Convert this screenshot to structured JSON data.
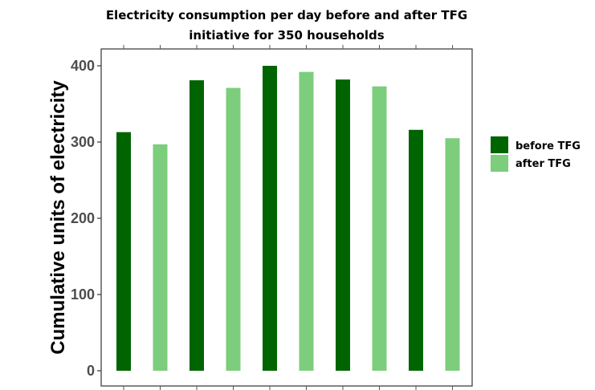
{
  "chart_data": {
    "type": "bar",
    "title_lines": [
      "Electricity consumption per day before and after TFG",
      "initiative for 350 households"
    ],
    "xlabel": "",
    "ylabel": "Cumulative units of electricity",
    "ylim": [
      0,
      420
    ],
    "yticks": [
      0,
      100,
      200,
      300,
      400
    ],
    "grid": false,
    "legend_position": "right",
    "series": [
      {
        "name": "before TFG",
        "color": "#006400"
      },
      {
        "name": "after TFG",
        "color": "#7ccd7c"
      }
    ],
    "bars": [
      {
        "series": 0,
        "value": 313
      },
      {
        "series": 1,
        "value": 297
      },
      {
        "series": 0,
        "value": 381
      },
      {
        "series": 1,
        "value": 371
      },
      {
        "series": 0,
        "value": 400
      },
      {
        "series": 1,
        "value": 392
      },
      {
        "series": 0,
        "value": 382
      },
      {
        "series": 1,
        "value": 373
      },
      {
        "series": 0,
        "value": 316
      },
      {
        "series": 1,
        "value": 305
      }
    ]
  }
}
